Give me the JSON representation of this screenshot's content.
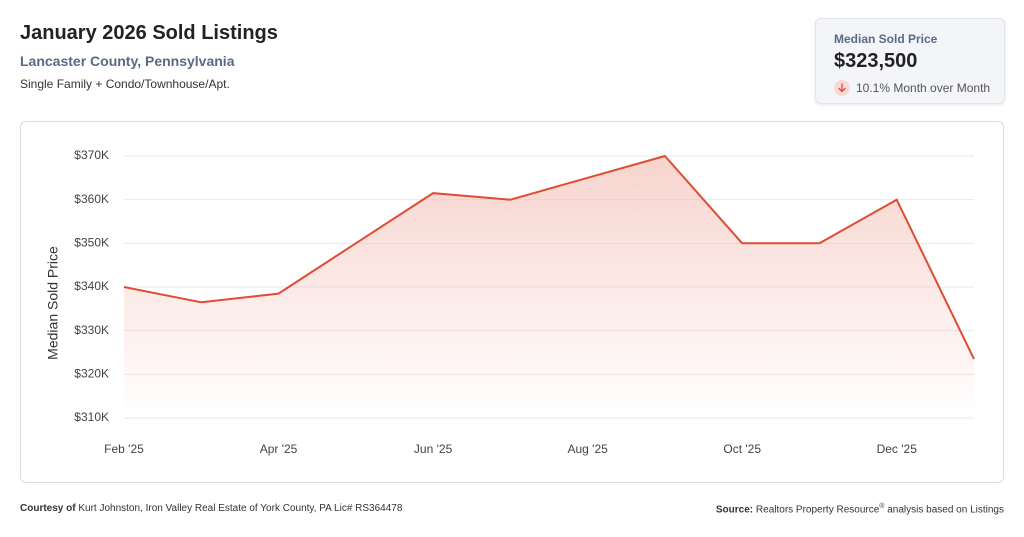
{
  "header": {
    "title": "January 2026 Sold Listings",
    "subtitle": "Lancaster County, Pennsylvania",
    "property_types": "Single Family + Condo/Townhouse/Apt."
  },
  "stat_card": {
    "label": "Median Sold Price",
    "value": "$323,500",
    "change": "10.1% Month over Month",
    "direction": "down",
    "icon": "arrow-down-icon"
  },
  "footer": {
    "courtesy_label": "Courtesy of",
    "courtesy_text": "Kurt Johnston, Iron Valley Real Estate of York County, PA Lic# RS364478",
    "source_label": "Source:",
    "source_text": "Realtors Property Resource",
    "source_mark": "®",
    "source_suffix": "analysis based on Listings"
  },
  "chart_data": {
    "type": "area",
    "title": "",
    "ylabel": "Median Sold Price",
    "xlabel": "",
    "x": [
      "Feb '25",
      "Mar '25",
      "Apr '25",
      "May '25",
      "Jun '25",
      "Jul '25",
      "Aug '25",
      "Sep '25",
      "Oct '25",
      "Nov '25",
      "Dec '25",
      "Jan '26"
    ],
    "x_tick_labels": [
      "Feb '25",
      "Apr '25",
      "Jun '25",
      "Aug '25",
      "Oct '25",
      "Dec '25"
    ],
    "x_tick_indices": [
      0,
      2,
      4,
      6,
      8,
      10
    ],
    "values": [
      340000,
      336500,
      338500,
      350000,
      361500,
      360000,
      365000,
      370000,
      350000,
      350000,
      360000,
      323500
    ],
    "ylim": [
      310000,
      370000
    ],
    "y_ticks": [
      310000,
      320000,
      330000,
      340000,
      350000,
      360000,
      370000
    ],
    "y_tick_labels": [
      "$310K",
      "$320K",
      "$330K",
      "$340K",
      "$350K",
      "$360K",
      "$370K"
    ],
    "grid": true,
    "line_color": "#e04b33",
    "fill_color": "#f3b7ad"
  }
}
